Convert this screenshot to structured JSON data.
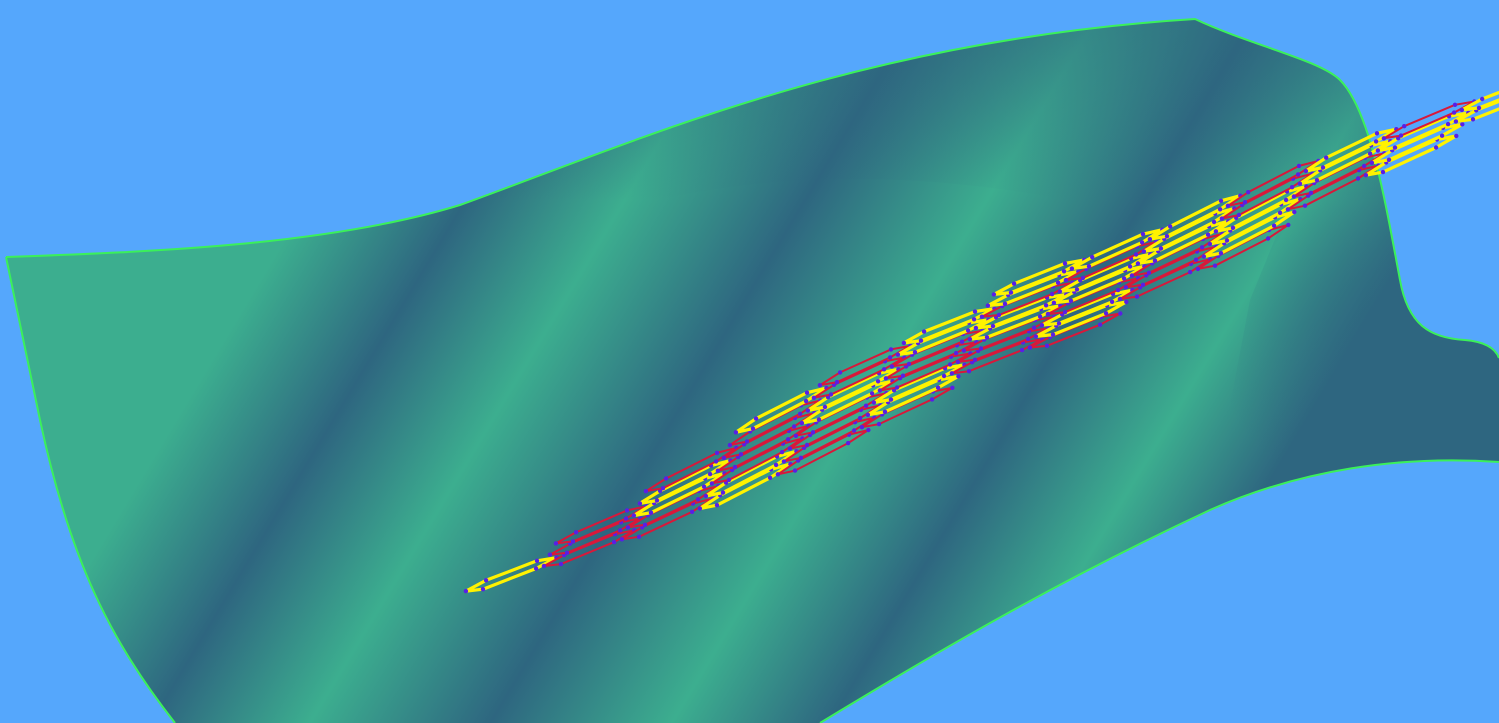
{
  "colors": {
    "background": "#55a7fc",
    "surface_light": "#3cae8f",
    "surface_dark": "#2e6680",
    "surface_edge": "#3bf05a",
    "lattice_gold": "#fff200",
    "lattice_red": "#d8183a",
    "lattice_node": "#5a1ee6"
  },
  "scene": {
    "surface": {
      "kind": "wavy-surface-sheet"
    },
    "lattice": {
      "kind": "hexagonal-lattice",
      "rows": 11,
      "columns": 9
    }
  }
}
